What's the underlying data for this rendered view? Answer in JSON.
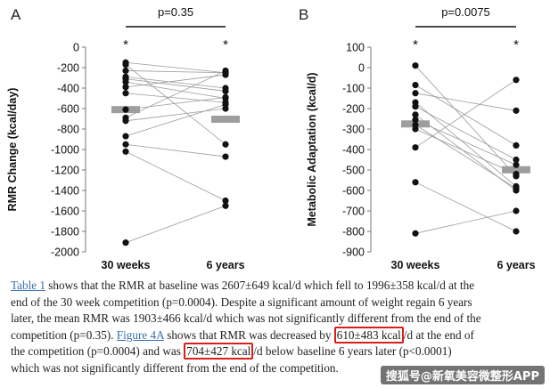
{
  "chart_data": [
    {
      "type": "scatter",
      "panel_label": "A",
      "p_value_label": "p=0.35",
      "ylabel": "RMR Change (kcal/day)",
      "categories": [
        "30 weeks",
        "6 years"
      ],
      "ylim": [
        -2000,
        0
      ],
      "yticks": [
        0,
        -200,
        -400,
        -600,
        -800,
        -1000,
        -1200,
        -1400,
        -1600,
        -1800,
        -2000
      ],
      "significance_markers": [
        "*",
        "*"
      ],
      "means": [
        -610,
        -704
      ],
      "pairs": [
        [
          -150,
          -250
        ],
        [
          -170,
          -950
        ],
        [
          -230,
          -250
        ],
        [
          -290,
          -400
        ],
        [
          -310,
          -430
        ],
        [
          -340,
          -500
        ],
        [
          -390,
          -270
        ],
        [
          -450,
          -540
        ],
        [
          -610,
          -490
        ],
        [
          -690,
          -230
        ],
        [
          -720,
          -600
        ],
        [
          -870,
          -560
        ],
        [
          -950,
          -1070
        ],
        [
          -1020,
          -1500
        ],
        [
          -1910,
          -1550
        ]
      ]
    },
    {
      "type": "scatter",
      "panel_label": "B",
      "p_value_label": "p=0.0075",
      "ylabel": "Metabolic Adaptation (kcal/d)",
      "categories": [
        "30 weeks",
        "6 years"
      ],
      "ylim": [
        -900,
        100
      ],
      "yticks": [
        100,
        0,
        -100,
        -200,
        -300,
        -400,
        -500,
        -600,
        -700,
        -800,
        -900
      ],
      "significance_markers": [
        "*",
        "*"
      ],
      "means": [
        -275,
        -499
      ],
      "pairs": [
        [
          10,
          -530
        ],
        [
          -85,
          -380
        ],
        [
          -125,
          -210
        ],
        [
          -170,
          -580
        ],
        [
          -190,
          -450
        ],
        [
          -230,
          -600
        ],
        [
          -255,
          -475
        ],
        [
          -280,
          -590
        ],
        [
          -300,
          -520
        ],
        [
          -390,
          -60
        ],
        [
          -560,
          -800
        ],
        [
          -810,
          -700
        ]
      ]
    }
  ],
  "text": {
    "l1a": "Table 1",
    "l1b": " shows that the RMR at baseline was 2607±649 kcal/d which fell to 1996±358 kcal/d at the",
    "l2": "end of the 30 week competition (p=0.0004). Despite a significant amount of weight regain 6 years",
    "l3": "later, the mean RMR was 1903±466 kcal/d which was not significantly different from the end of the",
    "l4a": "competition (p=0.35). ",
    "l4b": "Figure 4A",
    "l4c": " shows that RMR was decreased by ",
    "l4d": "610±483 kcal",
    "l4e": "/d at the end of",
    "l5a": "the competition (p=0.0004) and was ",
    "l5b": "704±427 kcal",
    "l5c": "/d below baseline 6 years later (p<0.0001)",
    "l6": "which was not significantly different from the end of the competition."
  },
  "watermark": "搜狐号@新氧美容微整形APP"
}
